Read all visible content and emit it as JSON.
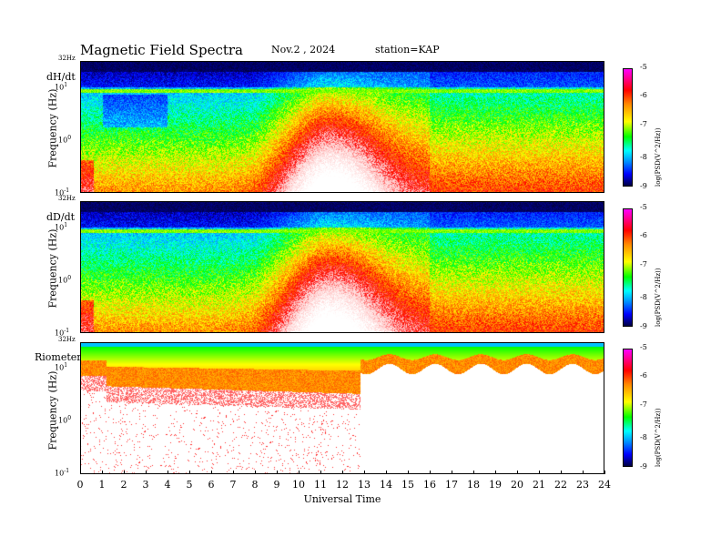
{
  "header": {
    "title": "Magnetic  Field  Spectra",
    "date": "Nov.2  , 2024",
    "station": "station=KAP"
  },
  "chart_data": [
    {
      "type": "heatmap",
      "panel_label": "dH/dt",
      "ylabel": "Frequency (Hz)",
      "top_label": "32Hz",
      "y_scale": "log",
      "y_ticks": [
        "10",
        "10",
        "10"
      ],
      "y_tick_exponents": [
        "1",
        "0",
        "-1"
      ],
      "xlim": [
        0,
        24
      ],
      "colorbar": {
        "ticks": [
          "-5",
          "-6",
          "-7",
          "-8",
          "-9"
        ],
        "label": "log(PSD(V^2/Hz))",
        "range": [
          -9,
          -5
        ]
      }
    },
    {
      "type": "heatmap",
      "panel_label": "dD/dt",
      "ylabel": "Frequency (Hz)",
      "top_label": "32Hz",
      "y_scale": "log",
      "y_ticks": [
        "10",
        "10",
        "10"
      ],
      "y_tick_exponents": [
        "1",
        "0",
        "-1"
      ],
      "xlim": [
        0,
        24
      ],
      "colorbar": {
        "ticks": [
          "-5",
          "-6",
          "-7",
          "-8",
          "-9"
        ],
        "label": "log(PSD(V^2/Hz))",
        "range": [
          -9,
          -5
        ]
      }
    },
    {
      "type": "heatmap",
      "panel_label": "Riometer",
      "ylabel": "Frequency (Hz)",
      "top_label": "32Hz",
      "y_scale": "log",
      "y_ticks": [
        "10",
        "10",
        "10"
      ],
      "y_tick_exponents": [
        "1",
        "0",
        "-1"
      ],
      "xlim": [
        0,
        24
      ],
      "colorbar": {
        "ticks": [
          "-5",
          "-6",
          "-7",
          "-8",
          "-9"
        ],
        "label": "log(PSD(V^2/Hz))",
        "range": [
          -9,
          -5
        ]
      }
    }
  ],
  "xaxis": {
    "title": "Universal Time",
    "ticks": [
      "0",
      "1",
      "2",
      "3",
      "4",
      "5",
      "6",
      "7",
      "8",
      "9",
      "10",
      "11",
      "12",
      "13",
      "14",
      "15",
      "16",
      "17",
      "18",
      "19",
      "20",
      "21",
      "22",
      "23",
      "24"
    ]
  }
}
